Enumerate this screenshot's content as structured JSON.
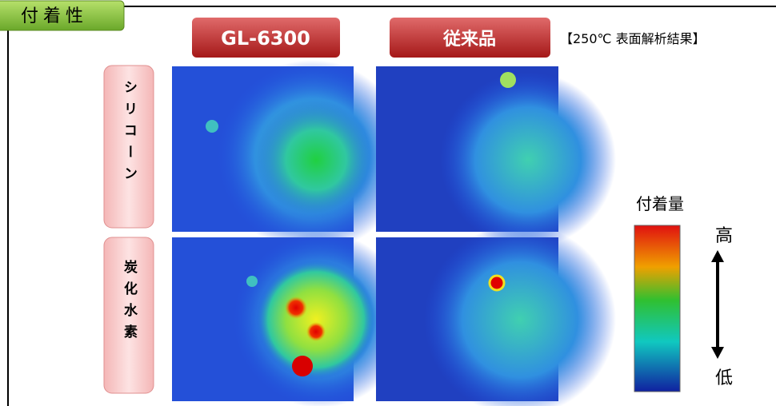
{
  "header": {
    "title": "付着性",
    "note": "【250℃ 表面解析結果】"
  },
  "columns": [
    "GL-6300",
    "従来品"
  ],
  "rows": [
    "シリコーン",
    "炭化水素"
  ],
  "legend": {
    "title": "付着量",
    "high": "高",
    "low": "低"
  }
}
